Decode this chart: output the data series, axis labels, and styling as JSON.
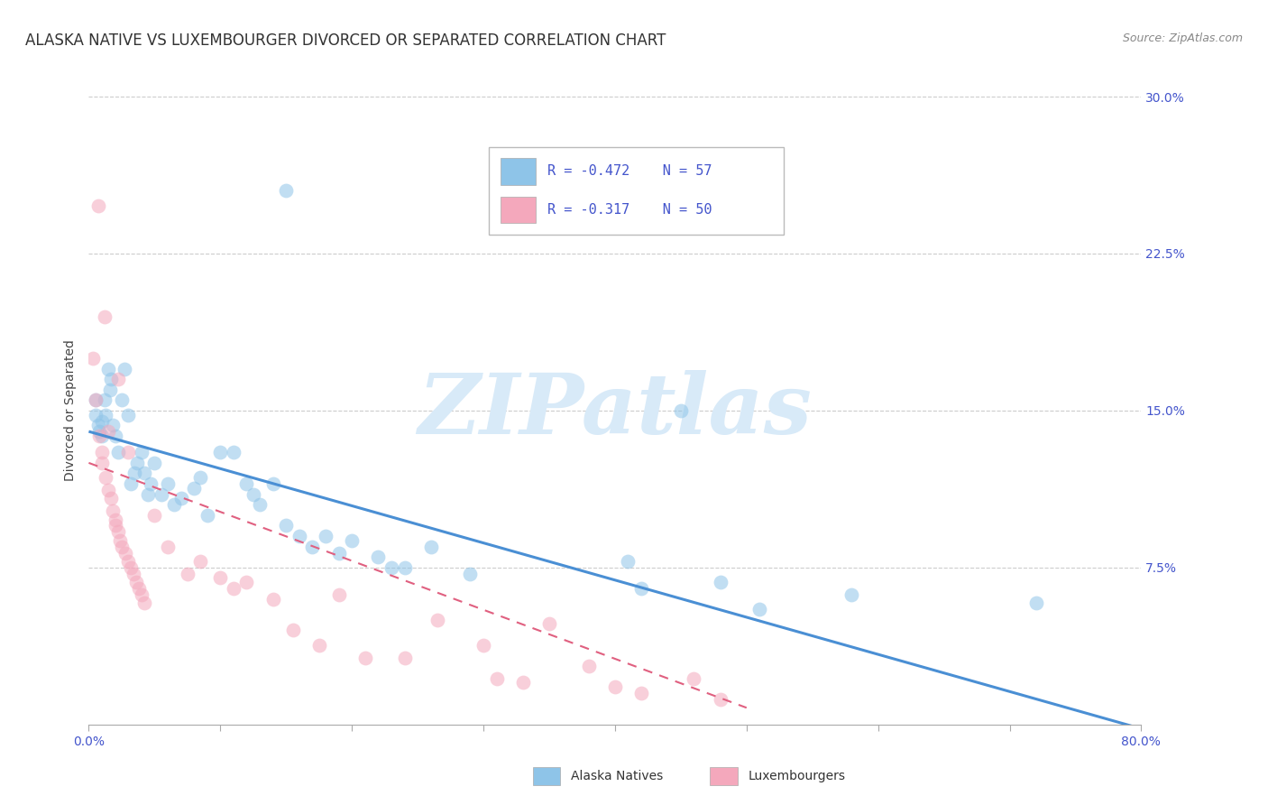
{
  "title": "ALASKA NATIVE VS LUXEMBOURGER DIVORCED OR SEPARATED CORRELATION CHART",
  "source": "Source: ZipAtlas.com",
  "ylabel": "Divorced or Separated",
  "watermark": "ZIPatlas",
  "legend_blue_r": "R = -0.472",
  "legend_blue_n": "N = 57",
  "legend_pink_r": "R = -0.317",
  "legend_pink_n": "N = 50",
  "legend_blue_label": "Alaska Natives",
  "legend_pink_label": "Luxembourgers",
  "xlim": [
    0.0,
    0.8
  ],
  "ylim": [
    0.0,
    0.3
  ],
  "yticks": [
    0.075,
    0.15,
    0.225,
    0.3
  ],
  "ytick_labels": [
    "7.5%",
    "15.0%",
    "22.5%",
    "30.0%"
  ],
  "blue_dots": [
    [
      0.005,
      0.155
    ],
    [
      0.005,
      0.148
    ],
    [
      0.007,
      0.143
    ],
    [
      0.008,
      0.14
    ],
    [
      0.01,
      0.145
    ],
    [
      0.01,
      0.138
    ],
    [
      0.012,
      0.155
    ],
    [
      0.013,
      0.148
    ],
    [
      0.015,
      0.17
    ],
    [
      0.016,
      0.16
    ],
    [
      0.017,
      0.165
    ],
    [
      0.018,
      0.143
    ],
    [
      0.02,
      0.138
    ],
    [
      0.022,
      0.13
    ],
    [
      0.025,
      0.155
    ],
    [
      0.027,
      0.17
    ],
    [
      0.03,
      0.148
    ],
    [
      0.032,
      0.115
    ],
    [
      0.035,
      0.12
    ],
    [
      0.037,
      0.125
    ],
    [
      0.04,
      0.13
    ],
    [
      0.042,
      0.12
    ],
    [
      0.045,
      0.11
    ],
    [
      0.047,
      0.115
    ],
    [
      0.05,
      0.125
    ],
    [
      0.055,
      0.11
    ],
    [
      0.06,
      0.115
    ],
    [
      0.065,
      0.105
    ],
    [
      0.07,
      0.108
    ],
    [
      0.08,
      0.113
    ],
    [
      0.085,
      0.118
    ],
    [
      0.09,
      0.1
    ],
    [
      0.1,
      0.13
    ],
    [
      0.11,
      0.13
    ],
    [
      0.12,
      0.115
    ],
    [
      0.125,
      0.11
    ],
    [
      0.13,
      0.105
    ],
    [
      0.14,
      0.115
    ],
    [
      0.15,
      0.095
    ],
    [
      0.16,
      0.09
    ],
    [
      0.17,
      0.085
    ],
    [
      0.18,
      0.09
    ],
    [
      0.19,
      0.082
    ],
    [
      0.2,
      0.088
    ],
    [
      0.22,
      0.08
    ],
    [
      0.23,
      0.075
    ],
    [
      0.24,
      0.075
    ],
    [
      0.26,
      0.085
    ],
    [
      0.29,
      0.072
    ],
    [
      0.15,
      0.255
    ],
    [
      0.41,
      0.078
    ],
    [
      0.42,
      0.065
    ],
    [
      0.45,
      0.15
    ],
    [
      0.48,
      0.068
    ],
    [
      0.51,
      0.055
    ],
    [
      0.58,
      0.062
    ],
    [
      0.72,
      0.058
    ]
  ],
  "pink_dots": [
    [
      0.003,
      0.175
    ],
    [
      0.005,
      0.155
    ],
    [
      0.007,
      0.248
    ],
    [
      0.008,
      0.138
    ],
    [
      0.01,
      0.13
    ],
    [
      0.01,
      0.125
    ],
    [
      0.012,
      0.195
    ],
    [
      0.013,
      0.118
    ],
    [
      0.015,
      0.112
    ],
    [
      0.015,
      0.14
    ],
    [
      0.017,
      0.108
    ],
    [
      0.018,
      0.102
    ],
    [
      0.02,
      0.098
    ],
    [
      0.02,
      0.095
    ],
    [
      0.022,
      0.165
    ],
    [
      0.022,
      0.092
    ],
    [
      0.024,
      0.088
    ],
    [
      0.025,
      0.085
    ],
    [
      0.028,
      0.082
    ],
    [
      0.03,
      0.078
    ],
    [
      0.03,
      0.13
    ],
    [
      0.032,
      0.075
    ],
    [
      0.034,
      0.072
    ],
    [
      0.036,
      0.068
    ],
    [
      0.038,
      0.065
    ],
    [
      0.04,
      0.062
    ],
    [
      0.042,
      0.058
    ],
    [
      0.05,
      0.1
    ],
    [
      0.06,
      0.085
    ],
    [
      0.075,
      0.072
    ],
    [
      0.085,
      0.078
    ],
    [
      0.1,
      0.07
    ],
    [
      0.11,
      0.065
    ],
    [
      0.12,
      0.068
    ],
    [
      0.14,
      0.06
    ],
    [
      0.155,
      0.045
    ],
    [
      0.175,
      0.038
    ],
    [
      0.19,
      0.062
    ],
    [
      0.21,
      0.032
    ],
    [
      0.24,
      0.032
    ],
    [
      0.265,
      0.05
    ],
    [
      0.3,
      0.038
    ],
    [
      0.31,
      0.022
    ],
    [
      0.33,
      0.02
    ],
    [
      0.35,
      0.048
    ],
    [
      0.38,
      0.028
    ],
    [
      0.4,
      0.018
    ],
    [
      0.42,
      0.015
    ],
    [
      0.46,
      0.022
    ],
    [
      0.48,
      0.012
    ]
  ],
  "blue_line_x": [
    0.0,
    0.8
  ],
  "blue_line_y": [
    0.14,
    -0.002
  ],
  "pink_line_x": [
    0.0,
    0.5
  ],
  "pink_line_y": [
    0.125,
    0.008
  ],
  "dot_size": 130,
  "dot_alpha": 0.55,
  "blue_color": "#8ec4e8",
  "pink_color": "#f4a8bc",
  "blue_line_color": "#4a8fd4",
  "pink_line_color": "#e06080",
  "tick_color": "#4455cc",
  "grid_color": "#cccccc",
  "watermark_color": "#d8eaf8",
  "watermark_fontsize": 68,
  "title_fontsize": 12,
  "source_fontsize": 9
}
